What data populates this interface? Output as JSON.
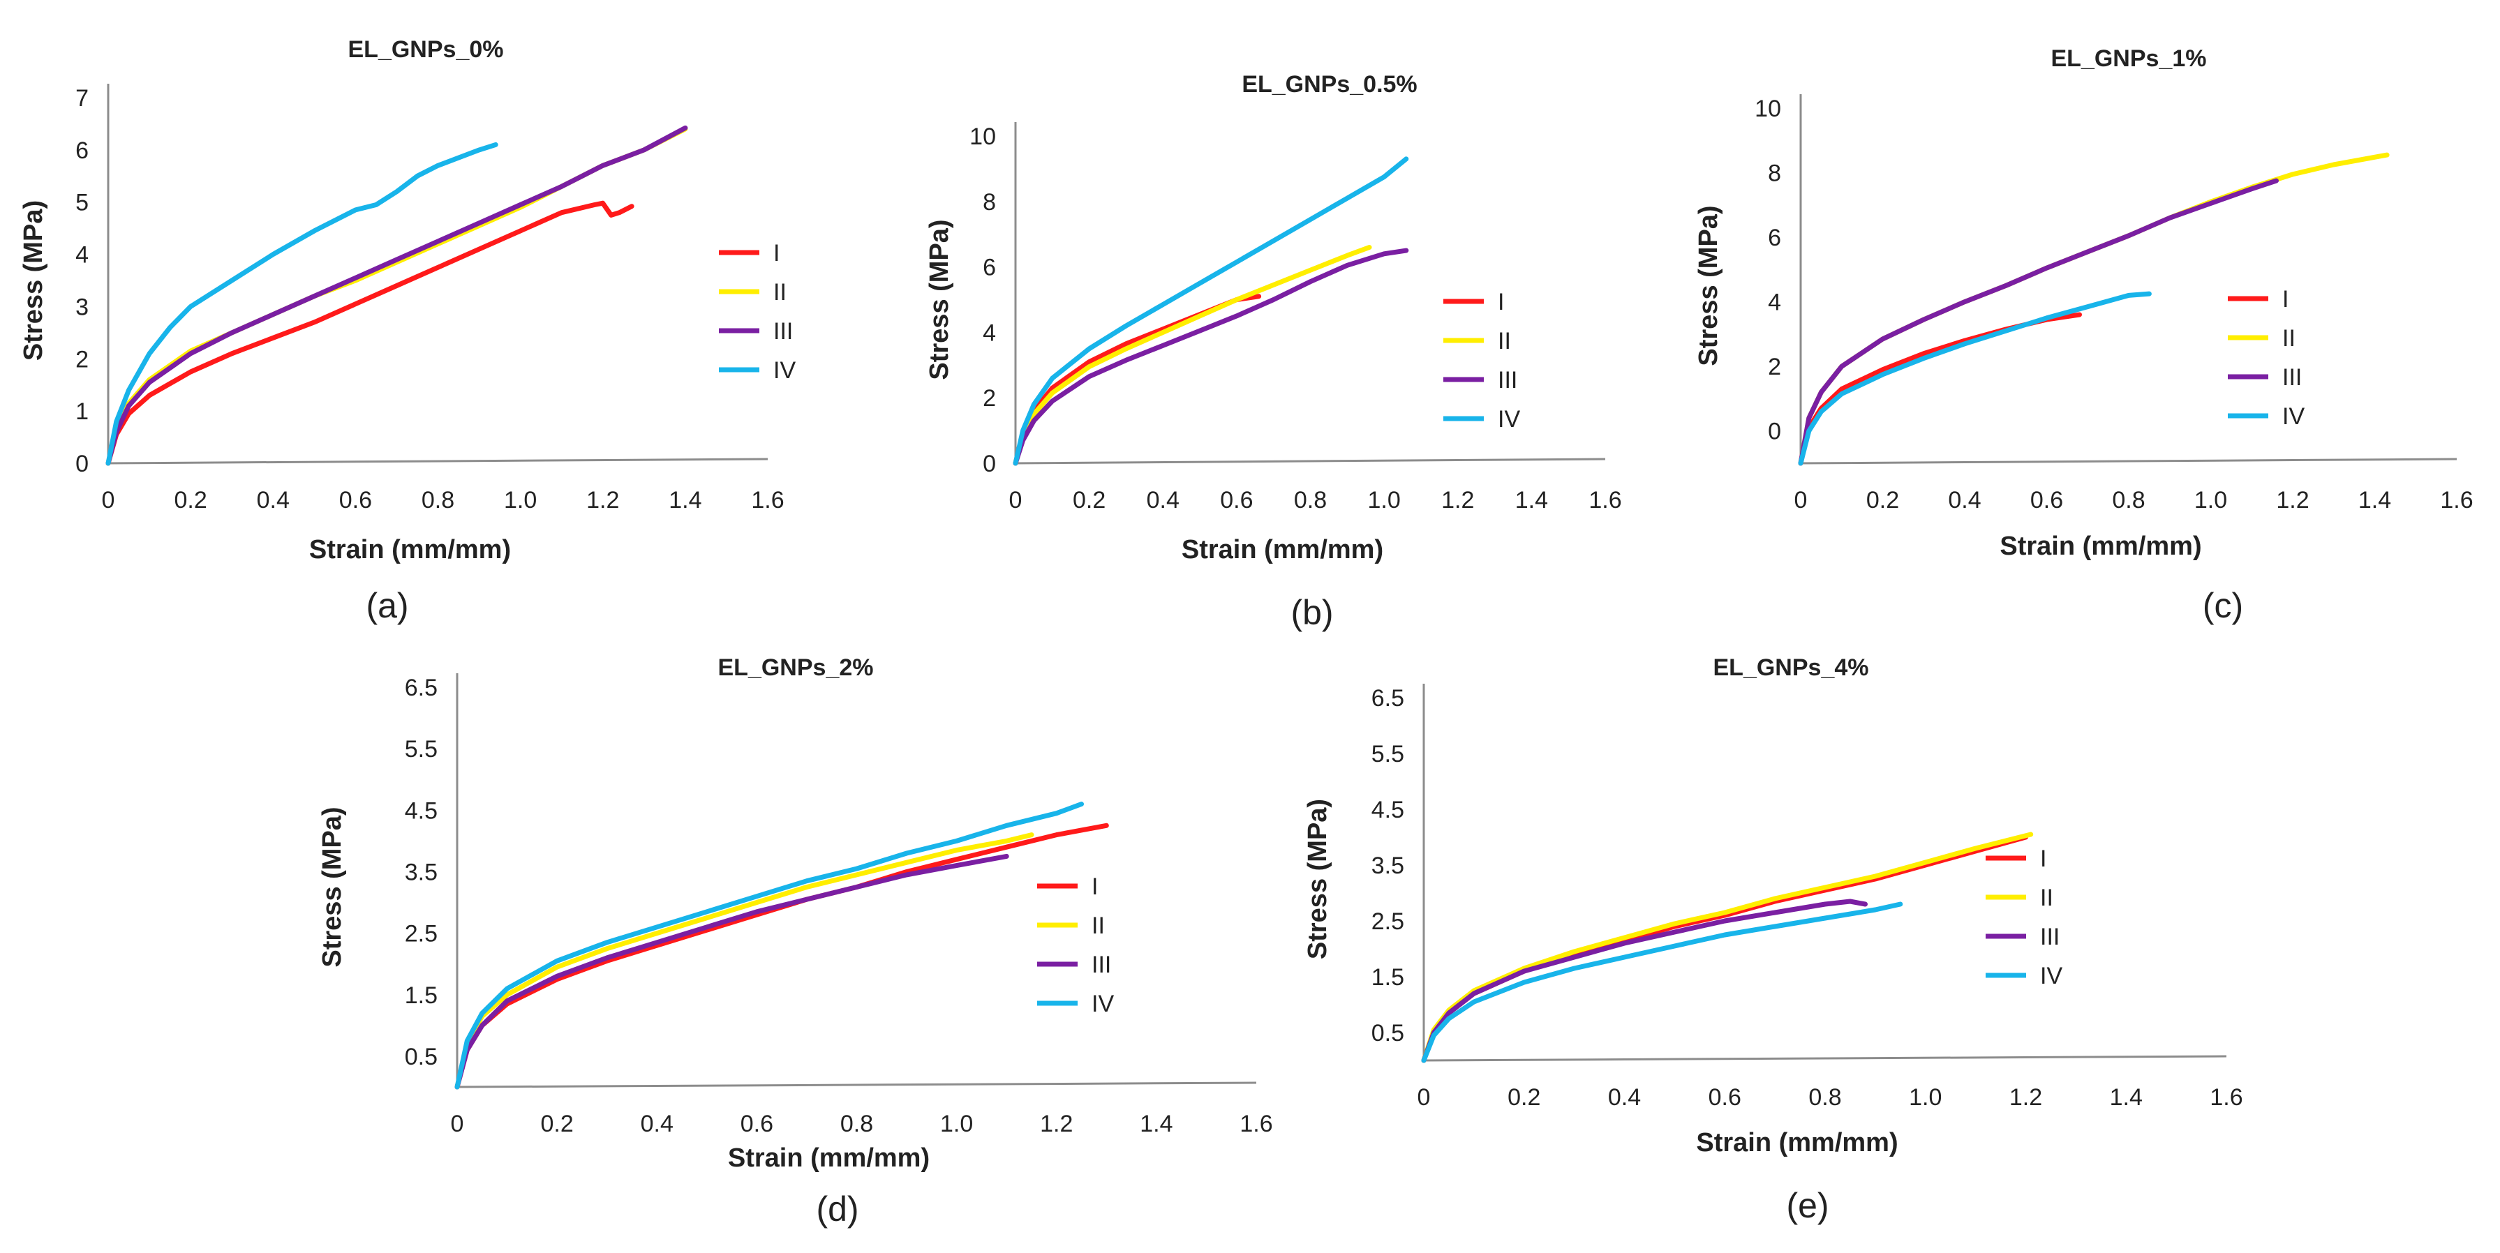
{
  "figure": {
    "series_colors": {
      "I": "#ff1a1a",
      "II": "#ffee00",
      "III": "#7a1fa2",
      "IV": "#18b4ea"
    }
  },
  "chart_data": [
    {
      "type": "line",
      "panel": "(a)",
      "title": "EL_GNPs_0%",
      "xlabel": "Strain (mm/mm)",
      "ylabel": "Stress (MPa)",
      "xlim": [
        0,
        1.6
      ],
      "ylim": [
        0,
        7
      ],
      "xticks": [
        "0",
        "0.2",
        "0.4",
        "0.6",
        "0.8",
        "1.0",
        "1.2",
        "1.4",
        "1.6"
      ],
      "yticks": [
        "0",
        "1",
        "2",
        "3",
        "4",
        "5",
        "6",
        "7"
      ],
      "xtick_values": [
        0,
        0.2,
        0.4,
        0.6,
        0.8,
        1.0,
        1.2,
        1.4,
        1.6
      ],
      "ytick_values": [
        0,
        1,
        2,
        3,
        4,
        5,
        6,
        7
      ],
      "legend": [
        "I",
        "II",
        "III",
        "IV"
      ],
      "series": [
        {
          "name": "I",
          "x": [
            0,
            0.02,
            0.05,
            0.1,
            0.2,
            0.3,
            0.4,
            0.5,
            0.6,
            0.7,
            0.8,
            0.9,
            1.0,
            1.1,
            1.18,
            1.2,
            1.22,
            1.24,
            1.27
          ],
          "y": [
            0,
            0.55,
            0.95,
            1.3,
            1.75,
            2.1,
            2.4,
            2.7,
            3.05,
            3.4,
            3.75,
            4.1,
            4.45,
            4.8,
            4.95,
            4.98,
            4.75,
            4.8,
            4.92
          ]
        },
        {
          "name": "II",
          "x": [
            0,
            0.02,
            0.05,
            0.1,
            0.2,
            0.3,
            0.4,
            0.5,
            0.6,
            0.7,
            0.8,
            0.9,
            1.0,
            1.1,
            1.2,
            1.3,
            1.4
          ],
          "y": [
            0,
            0.65,
            1.15,
            1.6,
            2.15,
            2.5,
            2.85,
            3.2,
            3.5,
            3.85,
            4.2,
            4.55,
            4.9,
            5.3,
            5.7,
            6.0,
            6.4
          ]
        },
        {
          "name": "III",
          "x": [
            0,
            0.02,
            0.05,
            0.1,
            0.2,
            0.3,
            0.4,
            0.5,
            0.6,
            0.7,
            0.8,
            0.9,
            1.0,
            1.1,
            1.2,
            1.3,
            1.4
          ],
          "y": [
            0,
            0.6,
            1.1,
            1.55,
            2.1,
            2.5,
            2.85,
            3.2,
            3.55,
            3.9,
            4.25,
            4.6,
            4.95,
            5.3,
            5.7,
            6.0,
            6.42
          ]
        },
        {
          "name": "IV",
          "x": [
            0,
            0.02,
            0.05,
            0.1,
            0.15,
            0.2,
            0.3,
            0.4,
            0.5,
            0.6,
            0.65,
            0.7,
            0.75,
            0.8,
            0.85,
            0.9,
            0.94
          ],
          "y": [
            0,
            0.8,
            1.4,
            2.1,
            2.6,
            3.0,
            3.5,
            4.0,
            4.45,
            4.85,
            4.95,
            5.2,
            5.5,
            5.7,
            5.85,
            6.0,
            6.1
          ]
        }
      ]
    },
    {
      "type": "line",
      "panel": "(b)",
      "title": "EL_GNPs_0.5%",
      "xlabel": "Strain (mm/mm)",
      "ylabel": "Stress (MPa)",
      "xlim": [
        0,
        1.6
      ],
      "ylim": [
        0,
        10
      ],
      "xticks": [
        "0",
        "0.2",
        "0.4",
        "0.6",
        "0.8",
        "1.0",
        "1.2",
        "1.4",
        "1.6"
      ],
      "yticks": [
        "0",
        "2",
        "4",
        "6",
        "8",
        "10"
      ],
      "xtick_values": [
        0,
        0.2,
        0.4,
        0.6,
        0.8,
        1.0,
        1.2,
        1.4,
        1.6
      ],
      "ytick_values": [
        0,
        2,
        4,
        6,
        8,
        10
      ],
      "legend": [
        "I",
        "II",
        "III",
        "IV"
      ],
      "series": [
        {
          "name": "I",
          "x": [
            0,
            0.02,
            0.05,
            0.1,
            0.2,
            0.3,
            0.4,
            0.5,
            0.6,
            0.66
          ],
          "y": [
            0,
            0.9,
            1.6,
            2.3,
            3.1,
            3.65,
            4.1,
            4.55,
            5.0,
            5.1
          ]
        },
        {
          "name": "II",
          "x": [
            0,
            0.02,
            0.05,
            0.1,
            0.2,
            0.3,
            0.4,
            0.5,
            0.6,
            0.7,
            0.8,
            0.9,
            0.96
          ],
          "y": [
            0,
            0.85,
            1.5,
            2.15,
            2.95,
            3.5,
            4.0,
            4.5,
            5.0,
            5.45,
            5.9,
            6.35,
            6.6
          ]
        },
        {
          "name": "III",
          "x": [
            0,
            0.02,
            0.05,
            0.1,
            0.2,
            0.3,
            0.4,
            0.5,
            0.6,
            0.7,
            0.8,
            0.9,
            1.0,
            1.06
          ],
          "y": [
            0,
            0.7,
            1.3,
            1.9,
            2.65,
            3.15,
            3.6,
            4.05,
            4.5,
            5.0,
            5.55,
            6.05,
            6.4,
            6.5
          ]
        },
        {
          "name": "IV",
          "x": [
            0,
            0.02,
            0.05,
            0.1,
            0.2,
            0.3,
            0.4,
            0.5,
            0.6,
            0.7,
            0.8,
            0.9,
            1.0,
            1.06
          ],
          "y": [
            0,
            1.0,
            1.8,
            2.6,
            3.5,
            4.2,
            4.85,
            5.5,
            6.15,
            6.8,
            7.45,
            8.1,
            8.75,
            9.3
          ]
        }
      ]
    },
    {
      "type": "line",
      "panel": "(c)",
      "title": "EL_GNPs_1%",
      "xlabel": "Strain (mm/mm)",
      "ylabel": "Stress (MPa)",
      "xlim": [
        0,
        1.6
      ],
      "ylim": [
        -1,
        10
      ],
      "xticks": [
        "0",
        "0.2",
        "0.4",
        "0.6",
        "0.8",
        "1.0",
        "1.2",
        "1.4",
        "1.6"
      ],
      "yticks": [
        "0",
        "2",
        "4",
        "6",
        "8",
        "10"
      ],
      "xtick_values": [
        0,
        0.2,
        0.4,
        0.6,
        0.8,
        1.0,
        1.2,
        1.4,
        1.6
      ],
      "ytick_values": [
        0,
        2,
        4,
        6,
        8,
        10
      ],
      "legend": [
        "I",
        "II",
        "III",
        "IV"
      ],
      "series": [
        {
          "name": "I",
          "x": [
            0,
            0.02,
            0.05,
            0.1,
            0.2,
            0.3,
            0.4,
            0.5,
            0.6,
            0.68
          ],
          "y": [
            -1,
            0.1,
            0.7,
            1.3,
            1.9,
            2.4,
            2.8,
            3.15,
            3.45,
            3.6
          ]
        },
        {
          "name": "II",
          "x": [
            0,
            0.02,
            0.05,
            0.1,
            0.2,
            0.3,
            0.4,
            0.5,
            0.6,
            0.7,
            0.8,
            0.9,
            1.0,
            1.1,
            1.2,
            1.3,
            1.43
          ],
          "y": [
            -1,
            0.4,
            1.2,
            2.0,
            2.85,
            3.45,
            4.0,
            4.5,
            5.05,
            5.55,
            6.05,
            6.6,
            7.1,
            7.55,
            7.95,
            8.25,
            8.55
          ]
        },
        {
          "name": "III",
          "x": [
            0,
            0.02,
            0.05,
            0.1,
            0.2,
            0.3,
            0.4,
            0.5,
            0.6,
            0.7,
            0.8,
            0.9,
            1.0,
            1.1,
            1.16
          ],
          "y": [
            -1,
            0.4,
            1.2,
            2.0,
            2.85,
            3.45,
            4.0,
            4.5,
            5.05,
            5.55,
            6.05,
            6.6,
            7.05,
            7.5,
            7.75
          ]
        },
        {
          "name": "IV",
          "x": [
            0,
            0.02,
            0.05,
            0.1,
            0.2,
            0.3,
            0.4,
            0.5,
            0.6,
            0.7,
            0.8,
            0.85
          ],
          "y": [
            -1,
            0.0,
            0.6,
            1.15,
            1.75,
            2.25,
            2.7,
            3.1,
            3.5,
            3.85,
            4.2,
            4.25
          ]
        }
      ]
    },
    {
      "type": "line",
      "panel": "(d)",
      "title": "EL_GNPs_2%",
      "xlabel": "Strain (mm/mm)",
      "ylabel": "Stress (MPa)",
      "xlim": [
        0,
        1.6
      ],
      "ylim": [
        0,
        6.5
      ],
      "xticks": [
        "0",
        "0.2",
        "0.4",
        "0.6",
        "0.8",
        "1.0",
        "1.2",
        "1.4",
        "1.6"
      ],
      "yticks": [
        "0.5",
        "1.5",
        "2.5",
        "3.5",
        "4.5",
        "5.5",
        "6.5"
      ],
      "xtick_values": [
        0,
        0.2,
        0.4,
        0.6,
        0.8,
        1.0,
        1.2,
        1.4,
        1.6
      ],
      "ytick_values": [
        0.5,
        1.5,
        2.5,
        3.5,
        4.5,
        5.5,
        6.5
      ],
      "legend": [
        "I",
        "II",
        "III",
        "IV"
      ],
      "series": [
        {
          "name": "I",
          "x": [
            0,
            0.02,
            0.05,
            0.1,
            0.2,
            0.3,
            0.4,
            0.5,
            0.6,
            0.7,
            0.8,
            0.9,
            1.0,
            1.1,
            1.2,
            1.3
          ],
          "y": [
            0,
            0.6,
            1.0,
            1.35,
            1.75,
            2.05,
            2.3,
            2.55,
            2.8,
            3.05,
            3.25,
            3.5,
            3.7,
            3.9,
            4.1,
            4.25
          ]
        },
        {
          "name": "II",
          "x": [
            0,
            0.02,
            0.05,
            0.1,
            0.2,
            0.3,
            0.4,
            0.5,
            0.6,
            0.7,
            0.8,
            0.9,
            1.0,
            1.1,
            1.15
          ],
          "y": [
            0,
            0.7,
            1.15,
            1.5,
            1.95,
            2.25,
            2.5,
            2.75,
            3.0,
            3.25,
            3.45,
            3.65,
            3.85,
            4.0,
            4.1
          ]
        },
        {
          "name": "III",
          "x": [
            0,
            0.02,
            0.05,
            0.1,
            0.2,
            0.3,
            0.4,
            0.5,
            0.6,
            0.7,
            0.8,
            0.9,
            1.0,
            1.1
          ],
          "y": [
            0,
            0.6,
            1.0,
            1.4,
            1.8,
            2.1,
            2.35,
            2.6,
            2.85,
            3.05,
            3.25,
            3.45,
            3.6,
            3.75
          ]
        },
        {
          "name": "IV",
          "x": [
            0,
            0.02,
            0.05,
            0.1,
            0.2,
            0.3,
            0.4,
            0.5,
            0.6,
            0.7,
            0.8,
            0.9,
            1.0,
            1.1,
            1.2,
            1.25
          ],
          "y": [
            0,
            0.75,
            1.2,
            1.6,
            2.05,
            2.35,
            2.6,
            2.85,
            3.1,
            3.35,
            3.55,
            3.8,
            4.0,
            4.25,
            4.45,
            4.6
          ]
        }
      ]
    },
    {
      "type": "line",
      "panel": "(e)",
      "title": "EL_GNPs_4%",
      "xlabel": "Strain (mm/mm)",
      "ylabel": "Stress (MPa)",
      "xlim": [
        0,
        1.6
      ],
      "ylim": [
        0,
        6.5
      ],
      "xticks": [
        "0",
        "0.2",
        "0.4",
        "0.6",
        "0.8",
        "1.0",
        "1.2",
        "1.4",
        "1.6"
      ],
      "yticks": [
        "0.5",
        "1.5",
        "2.5",
        "3.5",
        "4.5",
        "5.5",
        "6.5"
      ],
      "xtick_values": [
        0,
        0.2,
        0.4,
        0.6,
        0.8,
        1.0,
        1.2,
        1.4,
        1.6
      ],
      "ytick_values": [
        0.5,
        1.5,
        2.5,
        3.5,
        4.5,
        5.5,
        6.5
      ],
      "legend": [
        "I",
        "II",
        "III",
        "IV"
      ],
      "series": [
        {
          "name": "I",
          "x": [
            0,
            0.02,
            0.05,
            0.1,
            0.2,
            0.3,
            0.4,
            0.5,
            0.6,
            0.7,
            0.8,
            0.9,
            1.0,
            1.1,
            1.2
          ],
          "y": [
            0,
            0.5,
            0.85,
            1.2,
            1.6,
            1.9,
            2.15,
            2.4,
            2.6,
            2.85,
            3.05,
            3.25,
            3.5,
            3.75,
            4.0
          ]
        },
        {
          "name": "II",
          "x": [
            0,
            0.02,
            0.05,
            0.1,
            0.2,
            0.3,
            0.4,
            0.5,
            0.6,
            0.7,
            0.8,
            0.9,
            1.0,
            1.1,
            1.21
          ],
          "y": [
            0,
            0.55,
            0.9,
            1.25,
            1.65,
            1.95,
            2.2,
            2.45,
            2.65,
            2.9,
            3.1,
            3.3,
            3.55,
            3.8,
            4.05
          ]
        },
        {
          "name": "III",
          "x": [
            0,
            0.02,
            0.05,
            0.1,
            0.2,
            0.3,
            0.4,
            0.5,
            0.6,
            0.7,
            0.8,
            0.85,
            0.88
          ],
          "y": [
            0,
            0.5,
            0.85,
            1.2,
            1.6,
            1.85,
            2.1,
            2.3,
            2.5,
            2.65,
            2.8,
            2.85,
            2.8
          ]
        },
        {
          "name": "IV",
          "x": [
            0,
            0.02,
            0.05,
            0.1,
            0.2,
            0.3,
            0.4,
            0.5,
            0.6,
            0.7,
            0.8,
            0.9,
            0.95
          ],
          "y": [
            0,
            0.45,
            0.75,
            1.05,
            1.4,
            1.65,
            1.85,
            2.05,
            2.25,
            2.4,
            2.55,
            2.7,
            2.8
          ]
        }
      ]
    }
  ]
}
